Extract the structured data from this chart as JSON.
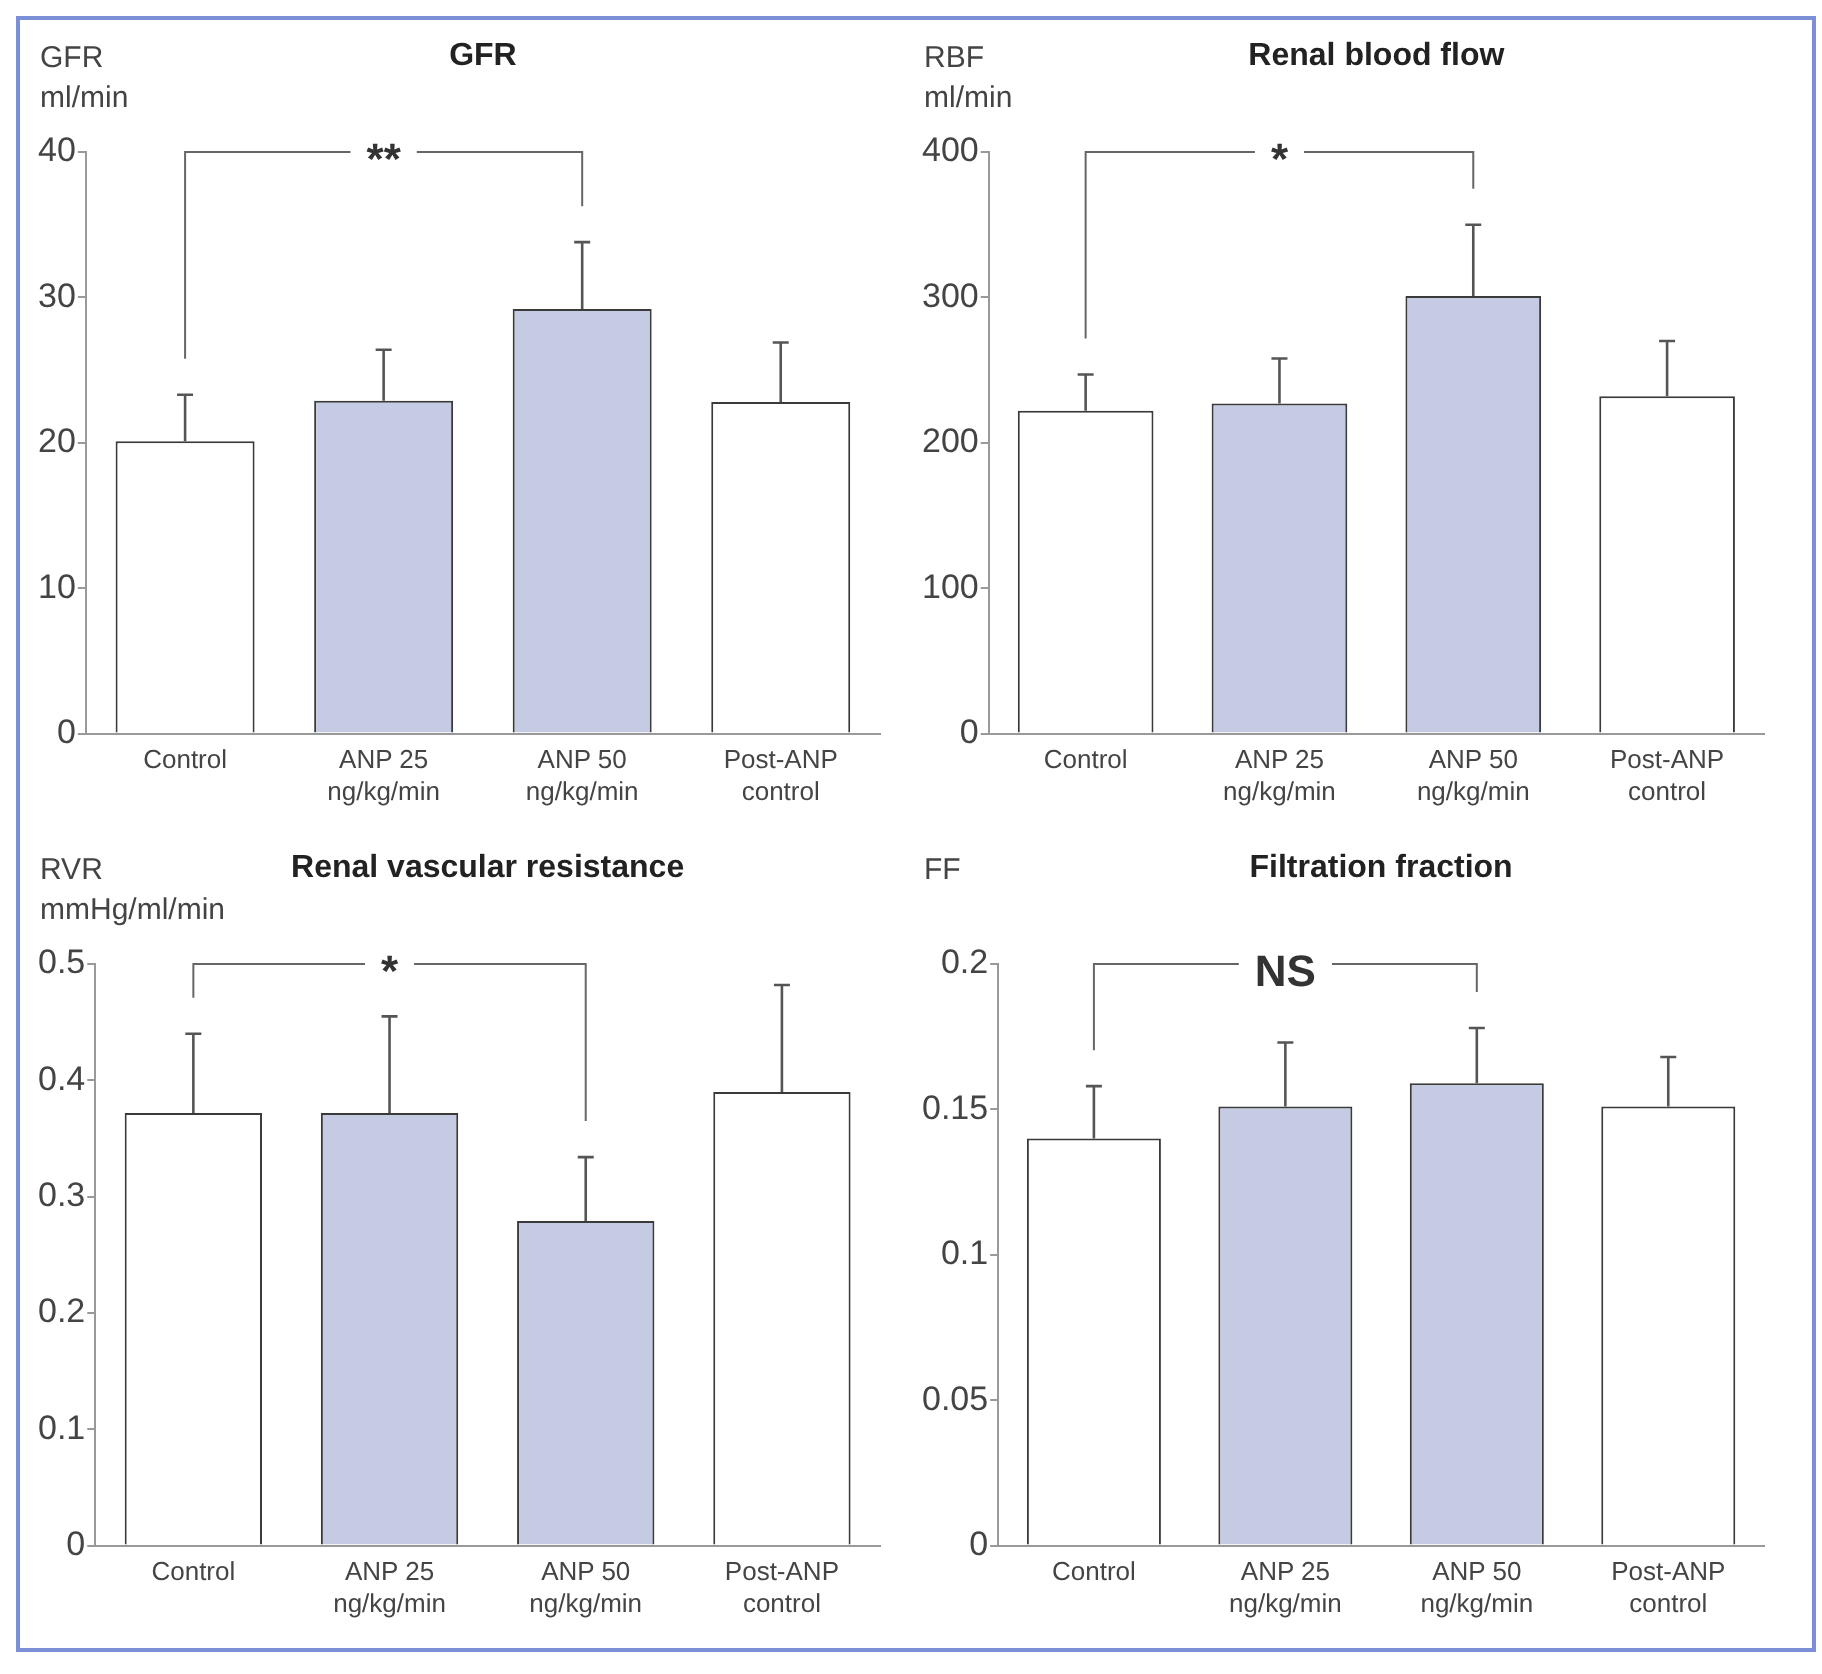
{
  "chart_data": [
    {
      "type": "bar",
      "title": "GFR",
      "ylabel": "GFR\nml/min",
      "categories": [
        "Control",
        "ANP 25\nng/kg/min",
        "ANP 50\nng/kg/min",
        "Post-ANP\ncontrol"
      ],
      "values": [
        20.1,
        22.9,
        29.2,
        22.8
      ],
      "colors": [
        "#ffffff",
        "#c5cbe3",
        "#c5cbe3",
        "#ffffff"
      ],
      "errors": [
        [
          20.1,
          23.3
        ],
        [
          22.9,
          26.4
        ],
        [
          29.2,
          33.8
        ],
        [
          22.8,
          26.9
        ]
      ],
      "ylim": [
        0,
        40
      ],
      "yticks": [
        0,
        10,
        20,
        30,
        40
      ],
      "annotations": [
        "**"
      ]
    },
    {
      "type": "bar",
      "title": "Renal blood flow",
      "ylabel": "RBF\nml/min",
      "categories": [
        "Control",
        "ANP 25\nng/kg/min",
        "ANP 50\nng/kg/min",
        "Post-ANP\ncontrol"
      ],
      "values": [
        222,
        227,
        301,
        232
      ],
      "colors": [
        "#ffffff",
        "#c5cbe3",
        "#c5cbe3",
        "#ffffff"
      ],
      "errors": [
        [
          222,
          247
        ],
        [
          227,
          258
        ],
        [
          301,
          350
        ],
        [
          232,
          270
        ]
      ],
      "ylim": [
        0,
        400
      ],
      "yticks": [
        0,
        100,
        200,
        300,
        400
      ],
      "annotations": [
        "*"
      ]
    },
    {
      "type": "bar",
      "title": "Renal vascular resistance",
      "ylabel": "RVR\nmmHg/ml/min",
      "categories": [
        "Control",
        "ANP 25\nng/kg/min",
        "ANP 50\nng/kg/min",
        "Post-ANP\ncontrol"
      ],
      "values": [
        0.372,
        0.372,
        0.279,
        0.39
      ],
      "colors": [
        "#ffffff",
        "#c5cbe3",
        "#c5cbe3",
        "#ffffff"
      ],
      "errors": [
        [
          0.372,
          0.44
        ],
        [
          0.372,
          0.455
        ],
        [
          0.279,
          0.334
        ],
        [
          0.39,
          0.482
        ]
      ],
      "ylim": [
        0,
        0.5
      ],
      "yticks": [
        0,
        0.1,
        0.2,
        0.3,
        0.4,
        0.5
      ],
      "annotations": [
        "*"
      ]
    },
    {
      "type": "bar",
      "title": "Filtration fraction",
      "ylabel": "FF",
      "categories": [
        "Control",
        "ANP 25\nng/kg/min",
        "ANP 50\nng/kg/min",
        "Post-ANP\ncontrol"
      ],
      "values": [
        0.14,
        0.151,
        0.159,
        0.151
      ],
      "colors": [
        "#ffffff",
        "#c5cbe3",
        "#c5cbe3",
        "#ffffff"
      ],
      "errors": [
        [
          0.14,
          0.158
        ],
        [
          0.151,
          0.173
        ],
        [
          0.159,
          0.178
        ],
        [
          0.151,
          0.168
        ]
      ],
      "ylim": [
        0,
        0.2
      ],
      "yticks": [
        0,
        0.05,
        0.1,
        0.15,
        0.2
      ],
      "annotations": [
        "NS"
      ]
    }
  ]
}
